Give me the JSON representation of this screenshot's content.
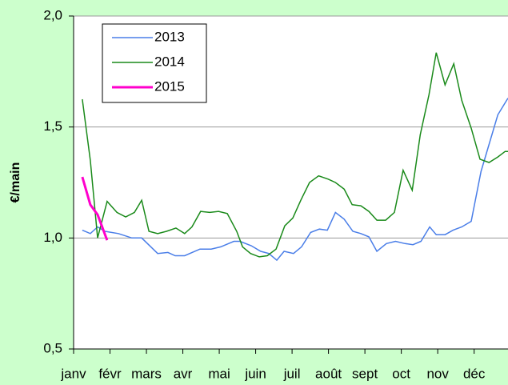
{
  "chart_data": {
    "type": "line",
    "ylabel": "€/main",
    "xticks": [
      {
        "value": 0,
        "label": "janv"
      },
      {
        "value": 1,
        "label": "févr"
      },
      {
        "value": 2,
        "label": "mars"
      },
      {
        "value": 3,
        "label": "avr"
      },
      {
        "value": 4,
        "label": "mai"
      },
      {
        "value": 5,
        "label": "juin"
      },
      {
        "value": 6,
        "label": "juil"
      },
      {
        "value": 7,
        "label": "août"
      },
      {
        "value": 8,
        "label": "sept"
      },
      {
        "value": 9,
        "label": "oct"
      },
      {
        "value": 10,
        "label": "nov"
      },
      {
        "value": 11,
        "label": "déc"
      }
    ],
    "xlim": [
      0,
      11.93
    ],
    "ylim": [
      0.5,
      2.0
    ],
    "yticks": [
      {
        "value": 0.5,
        "label": "0,5"
      },
      {
        "value": 1.0,
        "label": "1,0"
      },
      {
        "value": 1.5,
        "label": "1,5"
      },
      {
        "value": 2.0,
        "label": "2,0"
      }
    ],
    "grid": true,
    "legend": "upper left",
    "series": [
      {
        "name": "2013",
        "color": "#4a7ee8",
        "width": 1.5,
        "x": [
          0.24,
          0.46,
          0.66,
          0.86,
          1.23,
          1.6,
          1.87,
          2.31,
          2.59,
          2.79,
          3.05,
          3.47,
          3.78,
          4.04,
          4.4,
          4.57,
          4.88,
          5.14,
          5.36,
          5.58,
          5.78,
          6.04,
          6.26,
          6.51,
          6.75,
          6.97,
          7.19,
          7.43,
          7.67,
          7.89,
          8.11,
          8.33,
          8.59,
          8.84,
          9.1,
          9.32,
          9.54,
          9.78,
          9.96,
          10.2,
          10.42,
          10.66,
          10.92,
          11.19,
          11.65,
          11.93
        ],
        "values": [
          1.035,
          1.02,
          1.05,
          1.03,
          1.02,
          1.0,
          1.0,
          0.93,
          0.935,
          0.92,
          0.92,
          0.95,
          0.95,
          0.96,
          0.985,
          0.985,
          0.965,
          0.94,
          0.93,
          0.9,
          0.94,
          0.93,
          0.96,
          1.025,
          1.04,
          1.035,
          1.115,
          1.085,
          1.03,
          1.02,
          1.005,
          0.94,
          0.975,
          0.985,
          0.975,
          0.97,
          0.985,
          1.05,
          1.015,
          1.015,
          1.035,
          1.05,
          1.075,
          1.3,
          1.555,
          1.63
        ]
      },
      {
        "name": "2014",
        "color": "#1a8a1a",
        "width": 1.5,
        "x": [
          0.24,
          0.46,
          0.66,
          0.92,
          1.19,
          1.43,
          1.67,
          1.87,
          2.07,
          2.31,
          2.55,
          2.81,
          3.05,
          3.25,
          3.49,
          3.74,
          3.98,
          4.22,
          4.48,
          4.64,
          4.86,
          5.1,
          5.32,
          5.56,
          5.8,
          6.02,
          6.24,
          6.48,
          6.73,
          6.99,
          7.19,
          7.43,
          7.65,
          7.89,
          8.11,
          8.33,
          8.57,
          8.81,
          9.05,
          9.3,
          9.52,
          9.76,
          9.96,
          10.2,
          10.44,
          10.66,
          10.92,
          11.16,
          11.41,
          11.65,
          11.85,
          11.93
        ],
        "values": [
          1.625,
          1.35,
          1.0,
          1.165,
          1.115,
          1.095,
          1.115,
          1.17,
          1.03,
          1.02,
          1.03,
          1.045,
          1.02,
          1.05,
          1.12,
          1.115,
          1.12,
          1.11,
          1.03,
          0.96,
          0.93,
          0.915,
          0.92,
          0.95,
          1.055,
          1.09,
          1.17,
          1.25,
          1.28,
          1.265,
          1.25,
          1.22,
          1.15,
          1.145,
          1.12,
          1.08,
          1.08,
          1.115,
          1.305,
          1.215,
          1.465,
          1.645,
          1.835,
          1.69,
          1.785,
          1.62,
          1.495,
          1.355,
          1.34,
          1.365,
          1.39,
          1.39
        ]
      },
      {
        "name": "2015",
        "color": "#ff00cc",
        "width": 3,
        "x": [
          0.24,
          0.46,
          0.66,
          0.92
        ],
        "values": [
          1.275,
          1.15,
          1.105,
          0.99
        ]
      }
    ]
  }
}
